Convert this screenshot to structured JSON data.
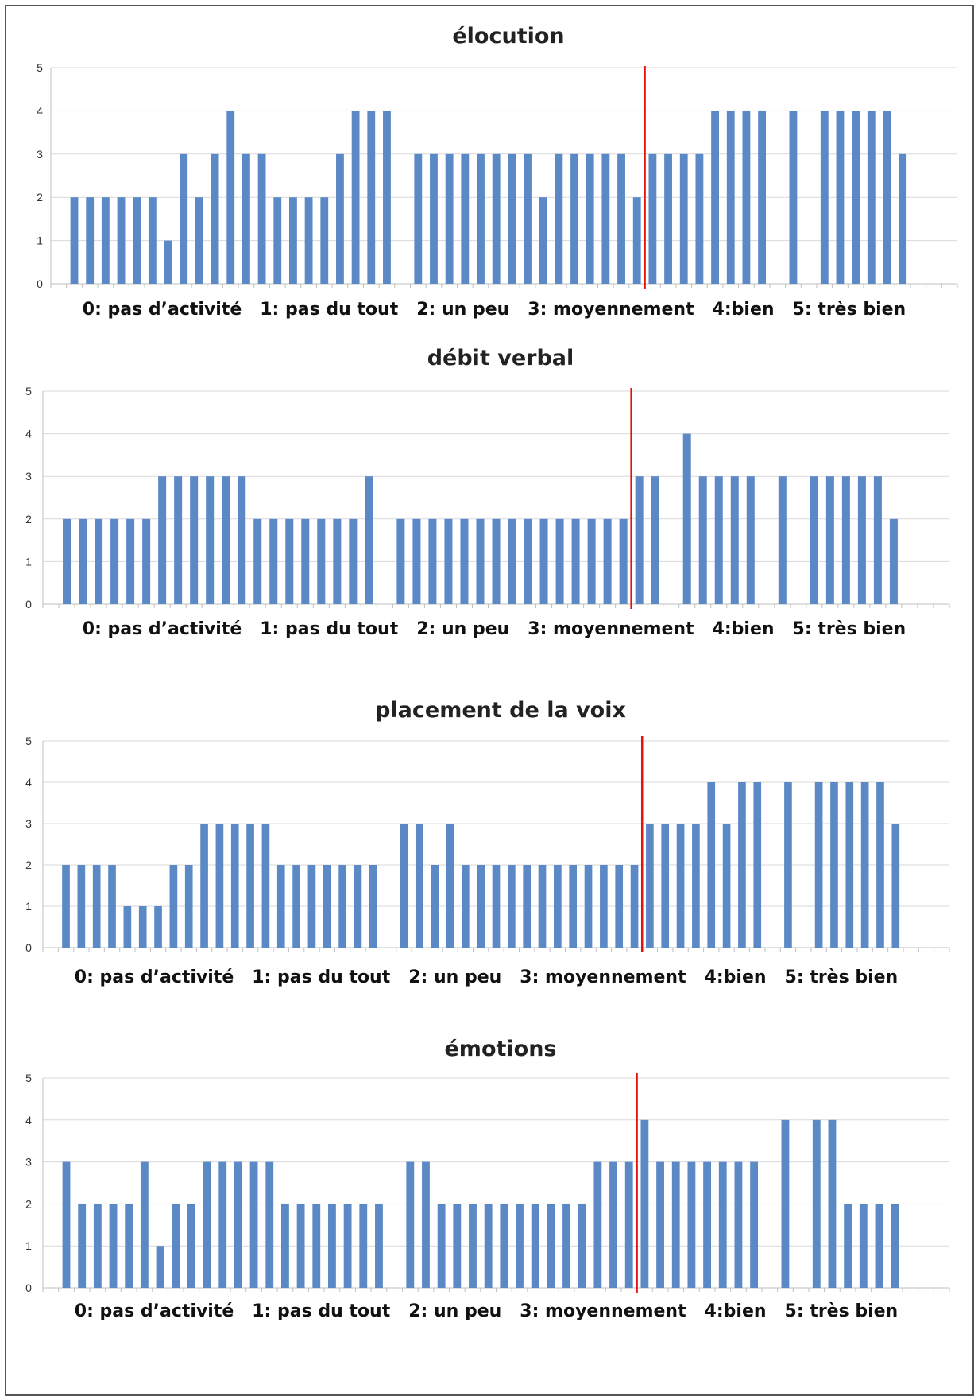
{
  "colors": {
    "bar": "#5B89C6",
    "divider": "#E3120B",
    "grid": "#D9D9D9",
    "axis": "#BFBFBF"
  },
  "chart_data": [
    {
      "type": "bar",
      "title": "élocution",
      "legend_text": "0: pas d’activité   1: pas du tout   2: un peu   3: moyennement   4:bien   5: très bien",
      "ylim": [
        0,
        5
      ],
      "yticks": [
        "0",
        "1",
        "2",
        "3",
        "4",
        "5"
      ],
      "grid": true,
      "values": [
        2,
        2,
        2,
        2,
        2,
        2,
        1,
        3,
        2,
        3,
        4,
        3,
        3,
        2,
        2,
        2,
        2,
        3,
        4,
        4,
        4,
        0,
        3,
        3,
        3,
        3,
        3,
        3,
        3,
        3,
        2,
        3,
        3,
        3,
        3,
        3,
        2,
        3,
        3,
        3,
        3,
        4,
        4,
        4,
        4,
        0,
        4,
        0,
        4,
        4,
        4,
        4,
        4,
        3
      ],
      "divider_after_index": 36
    },
    {
      "type": "bar",
      "title": "débit verbal",
      "legend_text": "0: pas d’activité   1: pas du tout   2: un peu   3: moyennement   4:bien   5: très bien",
      "ylim": [
        0,
        5
      ],
      "yticks": [
        "0",
        "1",
        "2",
        "3",
        "4",
        "5"
      ],
      "grid": true,
      "values": [
        2,
        2,
        2,
        2,
        2,
        2,
        3,
        3,
        3,
        3,
        3,
        3,
        2,
        2,
        2,
        2,
        2,
        2,
        2,
        3,
        0,
        2,
        2,
        2,
        2,
        2,
        2,
        2,
        2,
        2,
        2,
        2,
        2,
        2,
        2,
        2,
        3,
        3,
        0,
        4,
        3,
        3,
        3,
        3,
        0,
        3,
        0,
        3,
        3,
        3,
        3,
        3,
        2
      ],
      "divider_after_index": 35
    },
    {
      "type": "bar",
      "title": "placement de la voix",
      "legend_text": "0: pas d’activité   1: pas du tout   2: un peu   3: moyennement   4:bien   5: très bien",
      "ylim": [
        0,
        5
      ],
      "yticks": [
        "0",
        "1",
        "2",
        "3",
        "4",
        "5"
      ],
      "grid": true,
      "values": [
        2,
        2,
        2,
        2,
        1,
        1,
        1,
        2,
        2,
        3,
        3,
        3,
        3,
        3,
        2,
        2,
        2,
        2,
        2,
        2,
        2,
        0,
        3,
        3,
        2,
        3,
        2,
        2,
        2,
        2,
        2,
        2,
        2,
        2,
        2,
        2,
        2,
        2,
        3,
        3,
        3,
        3,
        4,
        3,
        4,
        4,
        0,
        4,
        0,
        4,
        4,
        4,
        4,
        4,
        3
      ],
      "divider_after_index": 37
    },
    {
      "type": "bar",
      "title": "émotions",
      "legend_text": "0: pas d’activité   1: pas du tout   2: un peu   3: moyennement   4:bien   5: très bien",
      "ylim": [
        0,
        5
      ],
      "yticks": [
        "0",
        "1",
        "2",
        "3",
        "4",
        "5"
      ],
      "grid": true,
      "values": [
        3,
        2,
        2,
        2,
        2,
        3,
        1,
        2,
        2,
        3,
        3,
        3,
        3,
        3,
        2,
        2,
        2,
        2,
        2,
        2,
        2,
        0,
        3,
        3,
        2,
        2,
        2,
        2,
        2,
        2,
        2,
        2,
        2,
        2,
        3,
        3,
        3,
        4,
        3,
        3,
        3,
        3,
        3,
        3,
        3,
        0,
        4,
        0,
        4,
        4,
        2,
        2,
        2,
        2
      ],
      "divider_after_index": 36
    }
  ]
}
